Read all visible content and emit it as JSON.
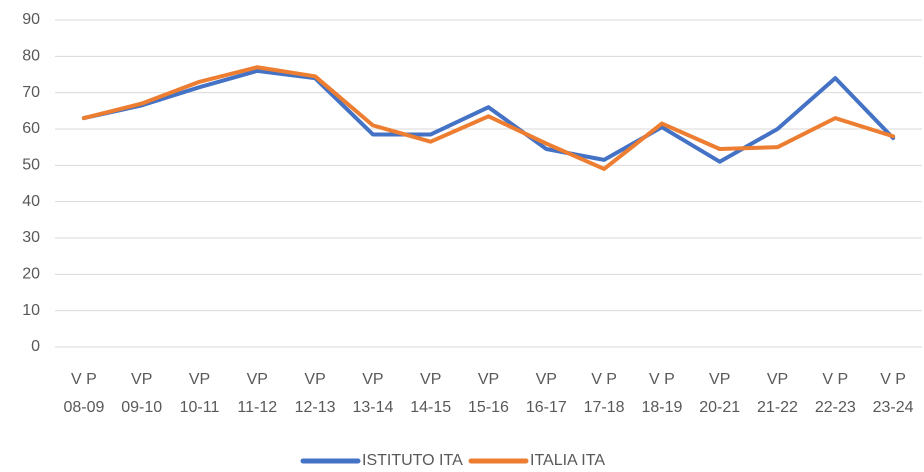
{
  "chart_data": {
    "type": "line",
    "categories": [
      "V P 08-09",
      "VP 09-10",
      "VP 10-11",
      "VP 11-12",
      "VP 12-13",
      "VP 13-14",
      "VP 14-15",
      "VP 15-16",
      "VP 16-17",
      "V P 17-18",
      "V P 18-19",
      "VP 20-21",
      "VP 21-22",
      "V P 22-23",
      "V P 23-24"
    ],
    "series": [
      {
        "name": "ISTITUTO ITA",
        "color": "#4472c4",
        "values": [
          63,
          66.5,
          71.5,
          76,
          74,
          58.5,
          58.5,
          66,
          54.5,
          51.5,
          60.5,
          51,
          60,
          74,
          57.5
        ]
      },
      {
        "name": "ITALIA ITA",
        "color": "#ed7d31",
        "values": [
          63,
          67,
          73,
          77,
          74.5,
          61,
          56.5,
          63.5,
          56,
          49,
          61.5,
          54.5,
          55,
          63,
          58
        ]
      }
    ],
    "ylim": [
      0,
      90
    ],
    "yticks": [
      0,
      10,
      20,
      30,
      40,
      50,
      60,
      70,
      80,
      90
    ],
    "grid": true,
    "legend": "bottom"
  }
}
